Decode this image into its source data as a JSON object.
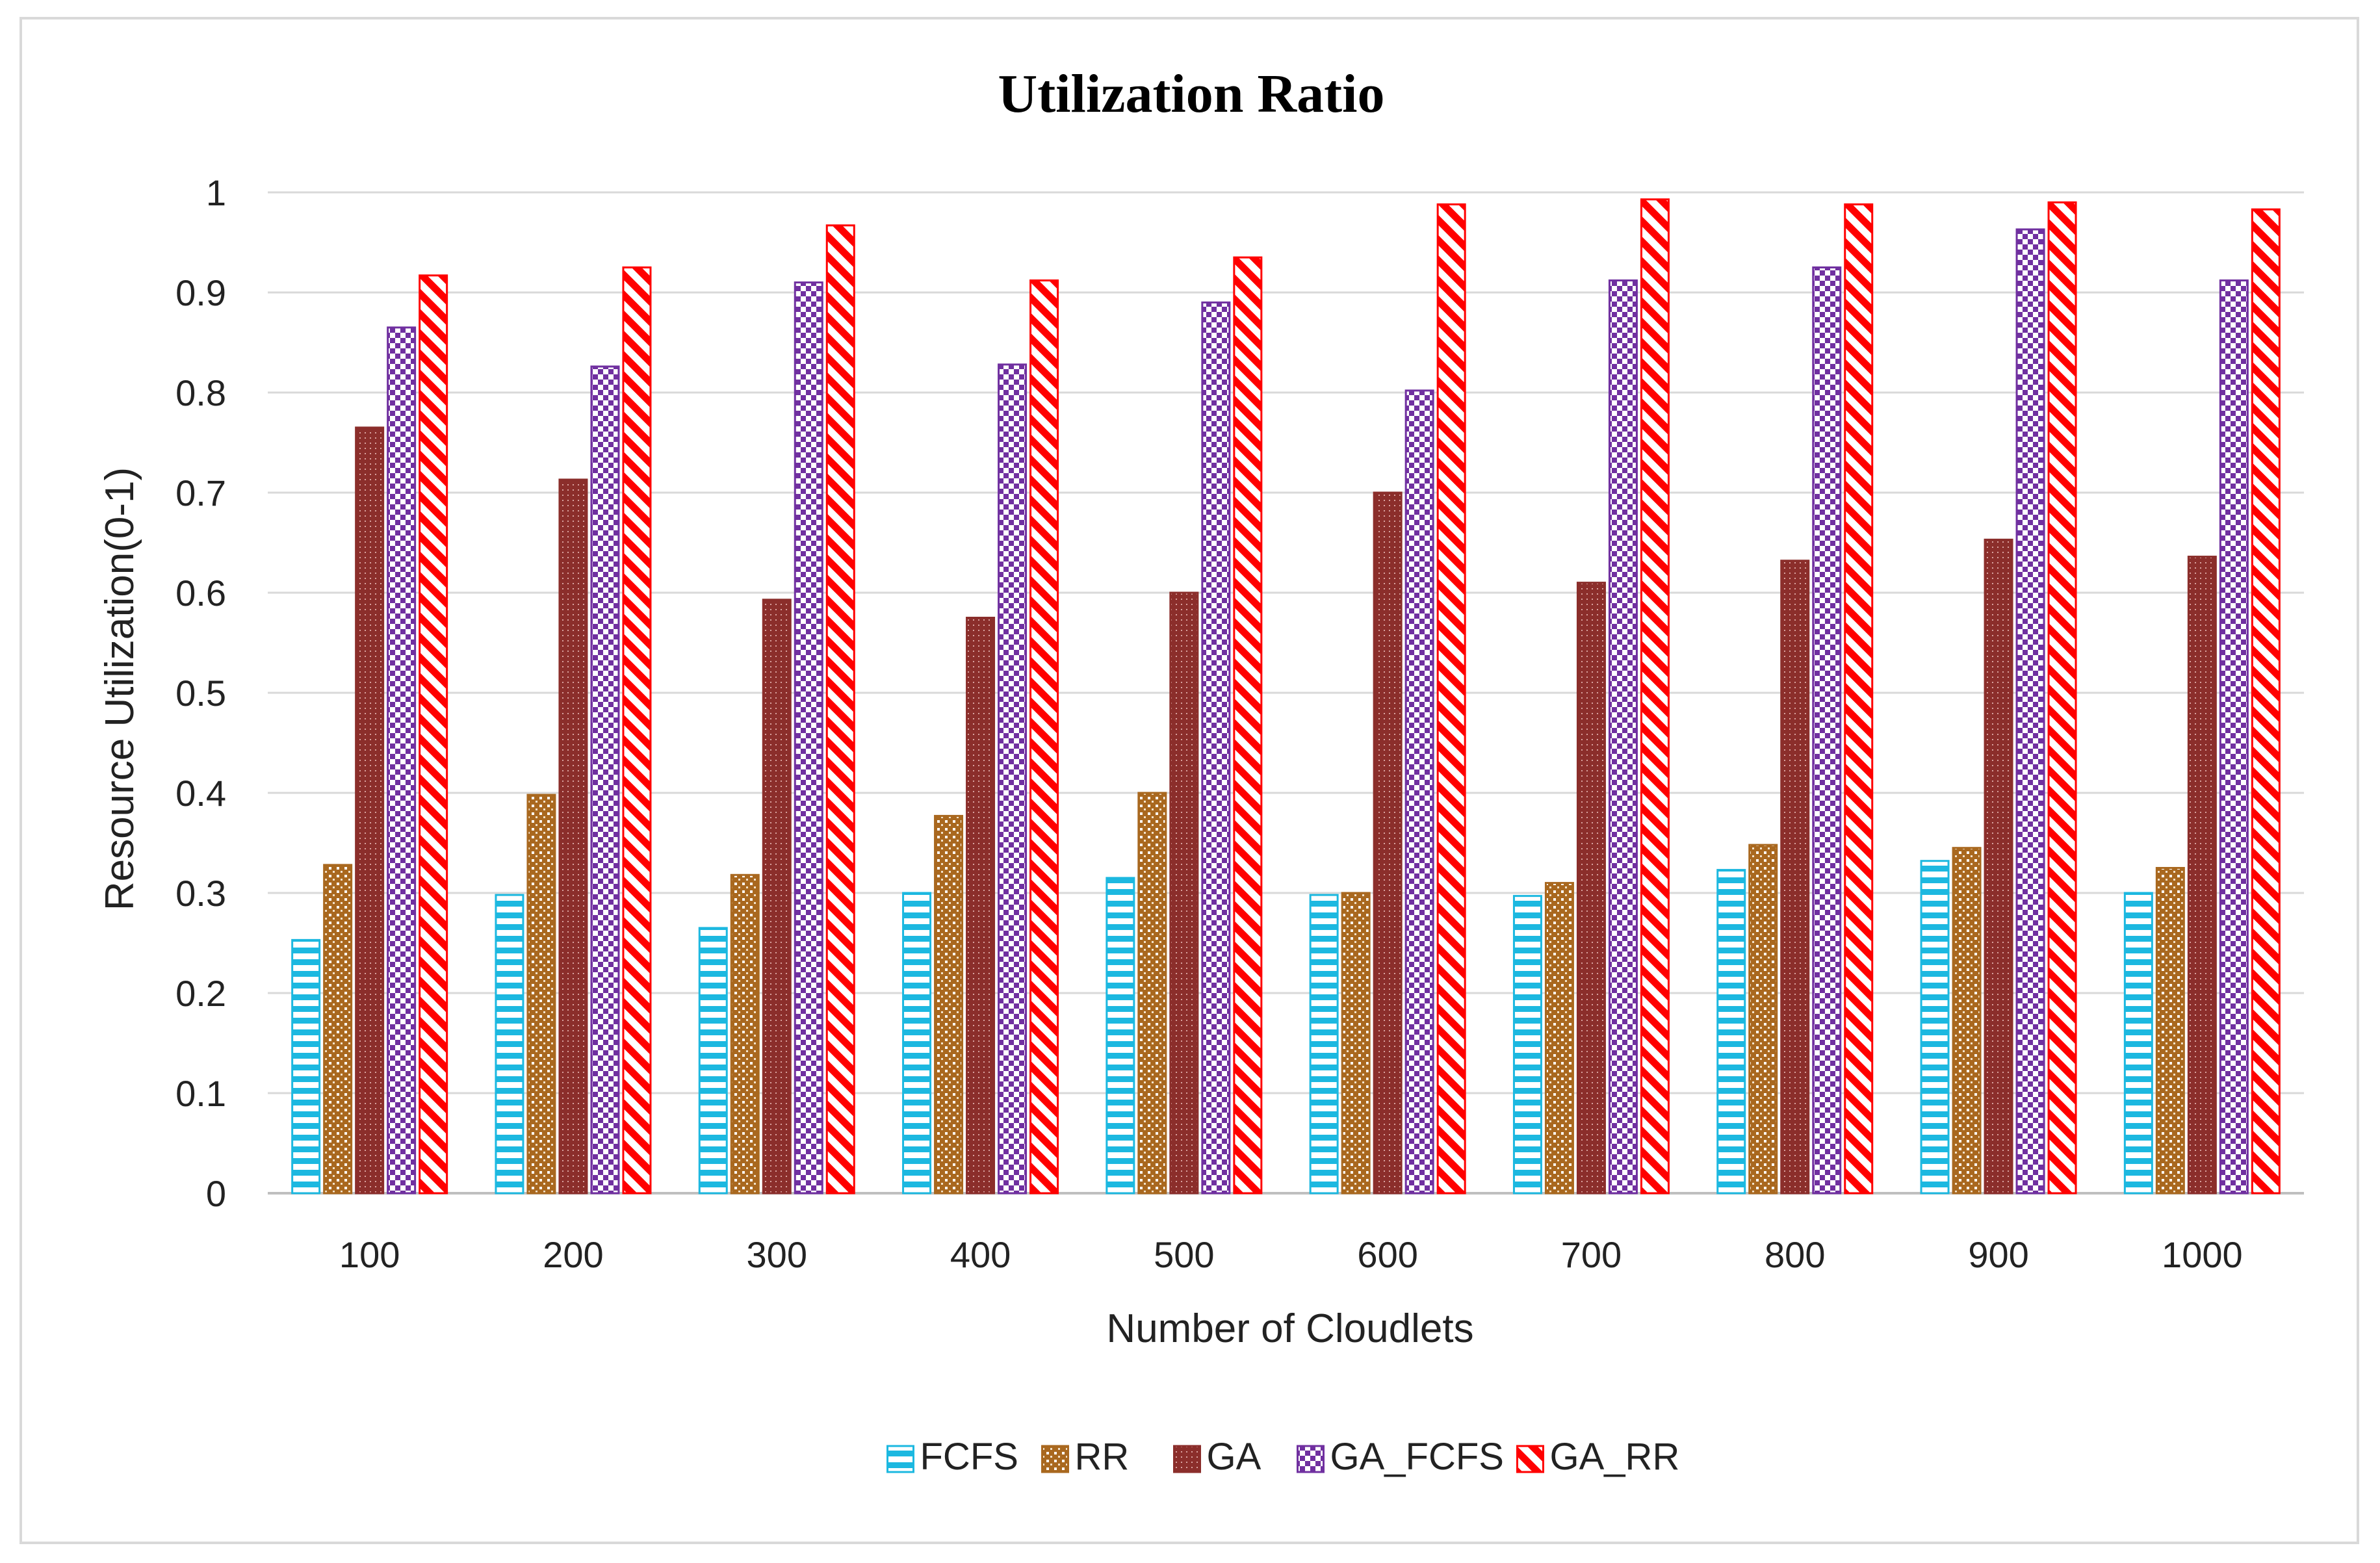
{
  "chart_data": {
    "type": "bar",
    "title": "Utilization Ratio",
    "xlabel": "Number of Cloudlets",
    "ylabel": "Resource Utilization(0-1)",
    "ylim": [
      0,
      1
    ],
    "yticks": [
      "0",
      "0.1",
      "0.2",
      "0.3",
      "0.4",
      "0.5",
      "0.6",
      "0.7",
      "0.8",
      "0.9",
      "1"
    ],
    "grid": true,
    "legend_position": "bottom",
    "categories": [
      "100",
      "200",
      "300",
      "400",
      "500",
      "600",
      "700",
      "800",
      "900",
      "1000"
    ],
    "series": [
      {
        "name": "FCFS",
        "color": "#1cb8e0",
        "pattern": "horizontal-stripes",
        "values": [
          0.253,
          0.298,
          0.265,
          0.3,
          0.315,
          0.298,
          0.297,
          0.323,
          0.332,
          0.3
        ]
      },
      {
        "name": "RR",
        "color": "#a9681f",
        "pattern": "dots",
        "values": [
          0.328,
          0.398,
          0.318,
          0.377,
          0.4,
          0.3,
          0.31,
          0.348,
          0.345,
          0.325
        ]
      },
      {
        "name": "GA",
        "color": "#8b2e2b",
        "pattern": "fine-dots",
        "values": [
          0.765,
          0.713,
          0.593,
          0.575,
          0.6,
          0.7,
          0.61,
          0.632,
          0.653,
          0.636
        ]
      },
      {
        "name": "GA_FCFS",
        "color": "#7030a0",
        "pattern": "checker",
        "values": [
          0.865,
          0.826,
          0.91,
          0.828,
          0.89,
          0.802,
          0.912,
          0.925,
          0.963,
          0.912
        ]
      },
      {
        "name": "GA_RR",
        "color": "#ff0000",
        "pattern": "diagonal-stripes",
        "values": [
          0.917,
          0.925,
          0.967,
          0.912,
          0.935,
          0.988,
          0.993,
          0.988,
          0.99,
          0.983
        ]
      }
    ]
  }
}
